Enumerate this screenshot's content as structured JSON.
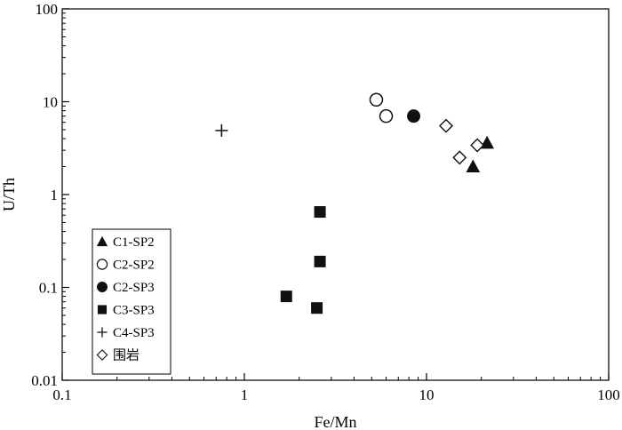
{
  "chart_data": {
    "type": "scatter",
    "xlabel": "Fe/Mn",
    "ylabel": "U/Th",
    "x_scale": "log",
    "y_scale": "log",
    "xlim": [
      0.1,
      100
    ],
    "ylim": [
      0.01,
      100
    ],
    "x_ticks": [
      "0.1",
      "1",
      "10",
      "100"
    ],
    "y_ticks": [
      "0.01",
      "0.1",
      "1",
      "10",
      "100"
    ],
    "grid": false,
    "legend_position": "bottom-left",
    "series": [
      {
        "name": "C1-SP2",
        "marker": "filled-triangle",
        "points": [
          [
            18,
            2.0
          ],
          [
            21.5,
            3.6
          ]
        ]
      },
      {
        "name": "C2-SP2",
        "marker": "open-circle",
        "points": [
          [
            5.3,
            10.5
          ],
          [
            6.0,
            7.0
          ]
        ]
      },
      {
        "name": "C2-SP3",
        "marker": "filled-circle",
        "points": [
          [
            8.5,
            7.0
          ]
        ]
      },
      {
        "name": "C3-SP3",
        "marker": "filled-square",
        "points": [
          [
            1.7,
            0.08
          ],
          [
            2.5,
            0.06
          ],
          [
            2.6,
            0.19
          ],
          [
            2.6,
            0.65
          ]
        ]
      },
      {
        "name": "C4-SP3",
        "marker": "plus",
        "points": [
          [
            0.75,
            4.9
          ]
        ]
      },
      {
        "name": "围岩",
        "marker": "open-diamond",
        "points": [
          [
            12.8,
            5.5
          ],
          [
            15.2,
            2.5
          ],
          [
            19.0,
            3.4
          ]
        ]
      }
    ]
  }
}
